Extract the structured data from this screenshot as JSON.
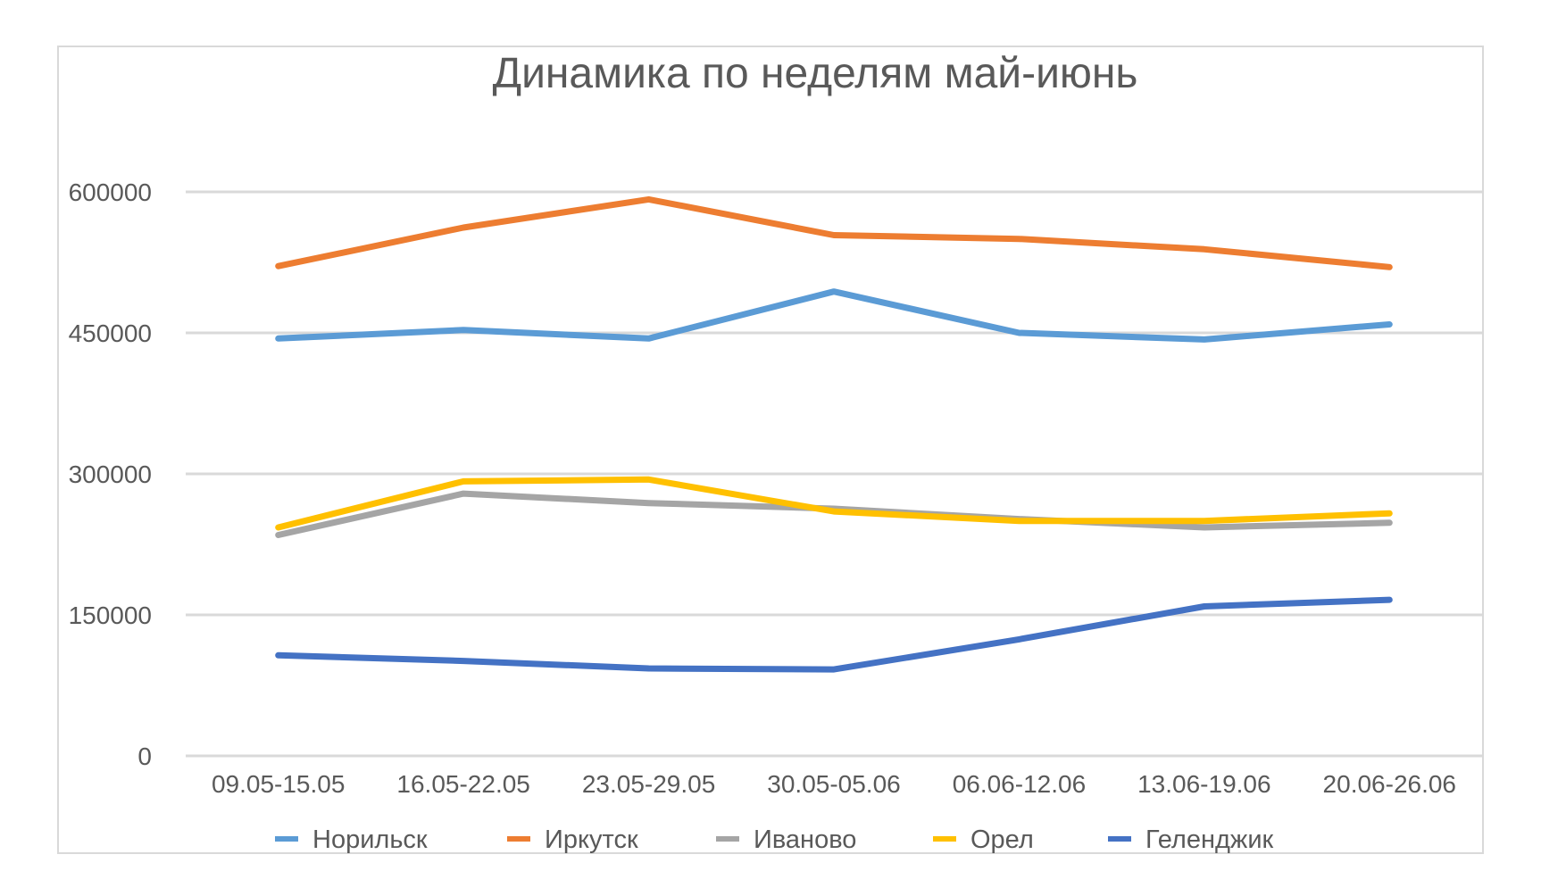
{
  "chart_data": {
    "type": "line",
    "title": "Динамика по неделям май-июнь",
    "xlabel": "",
    "ylabel": "",
    "ylim": [
      0,
      600000
    ],
    "yticks": [
      "0",
      "150000",
      "300000",
      "450000",
      "600000"
    ],
    "ytick_values": [
      0,
      150000,
      300000,
      450000,
      600000
    ],
    "grid": true,
    "legend_position": "bottom",
    "categories": [
      "09.05-15.05",
      "16.05-22.05",
      "23.05-29.05",
      "30.05-05.06",
      "06.06-12.06",
      "13.06-19.06",
      "20.06-26.06"
    ],
    "series": [
      {
        "name": "Норильск",
        "color": "#5b9bd5",
        "values": [
          444000,
          453000,
          444000,
          494000,
          450000,
          443000,
          459000
        ]
      },
      {
        "name": "Иркутск",
        "color": "#ed7d31",
        "values": [
          521000,
          562000,
          592000,
          554000,
          550000,
          539000,
          520000
        ]
      },
      {
        "name": "Иваново",
        "color": "#a5a5a5",
        "values": [
          235000,
          279000,
          269000,
          263000,
          252000,
          243000,
          248000
        ]
      },
      {
        "name": "Орел",
        "color": "#ffc000",
        "values": [
          243000,
          292000,
          294000,
          260000,
          250000,
          250000,
          258000
        ]
      },
      {
        "name": "Геленджик",
        "color": "#4472c4",
        "values": [
          107000,
          101000,
          93000,
          92000,
          124000,
          159000,
          166000
        ]
      }
    ]
  }
}
